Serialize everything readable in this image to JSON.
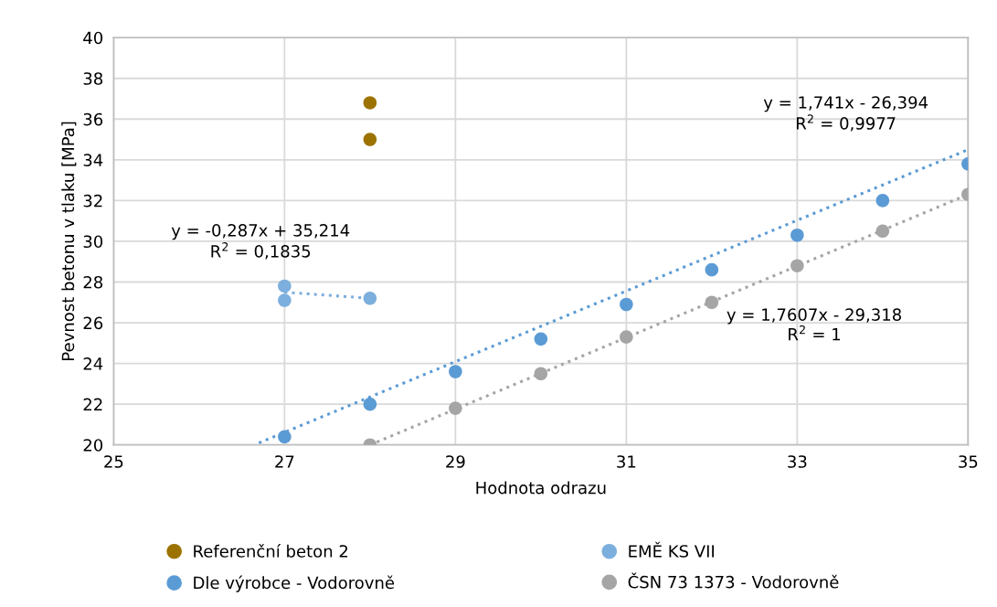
{
  "chart_data": {
    "type": "scatter",
    "xlabel": "Hodnota odrazu",
    "ylabel": "Pevnost betonu v tlaku [MPa]",
    "xlim": [
      25,
      35
    ],
    "xticks": [
      25,
      27,
      29,
      31,
      33,
      35
    ],
    "ylim": [
      20,
      40
    ],
    "yticks": [
      20,
      22,
      24,
      26,
      28,
      30,
      32,
      34,
      36,
      38,
      40
    ],
    "grid": true,
    "legend": "bottom",
    "marker": "circle",
    "series": [
      {
        "name": "Referenční beton 2",
        "color": "#9c7300",
        "x": [
          28,
          28
        ],
        "values": [
          36.8,
          35.0
        ]
      },
      {
        "name": "EMĚ KS VII",
        "color": "#7cafdd",
        "x": [
          27,
          27,
          28
        ],
        "values": [
          27.8,
          27.1,
          27.2
        ]
      },
      {
        "name": "Dle výrobce - Vodorovně",
        "color": "#5b9bd5",
        "x": [
          27,
          28,
          29,
          30,
          31,
          32,
          33,
          34,
          35
        ],
        "values": [
          20.4,
          22.0,
          23.6,
          25.2,
          26.9,
          28.6,
          30.3,
          32.0,
          33.8
        ]
      },
      {
        "name": "ČSN 73 1373 - Vodorovně",
        "color": "#a5a5a5",
        "x": [
          28,
          29,
          30,
          31,
          32,
          33,
          34,
          35
        ],
        "values": [
          20.0,
          21.8,
          23.5,
          25.3,
          27.0,
          28.8,
          30.5,
          32.3
        ]
      },
      {
        "type": "line",
        "color": "#7cafdd",
        "marker": "none",
        "line_style": "dotted",
        "x": [
          27,
          28
        ],
        "values": [
          27.5,
          27.2
        ]
      },
      {
        "type": "line",
        "color": "#5b9bd5",
        "marker": "none",
        "line_style": "dotted",
        "x": [
          26.7,
          35
        ],
        "values": [
          20.1,
          34.5
        ]
      },
      {
        "type": "line",
        "color": "#a5a5a5",
        "marker": "none",
        "line_style": "dotted",
        "x": [
          28,
          35
        ],
        "values": [
          20.0,
          32.3
        ]
      }
    ],
    "annotations": [
      "y = -0,287x + 35,214\nR$^{2}$ = 0,1835",
      "y = 1,741x - 26,394\nR$^{2}$ = 0,9977",
      "y = 1,7607x - 29,318\nR$^{2}$ = 1"
    ]
  }
}
